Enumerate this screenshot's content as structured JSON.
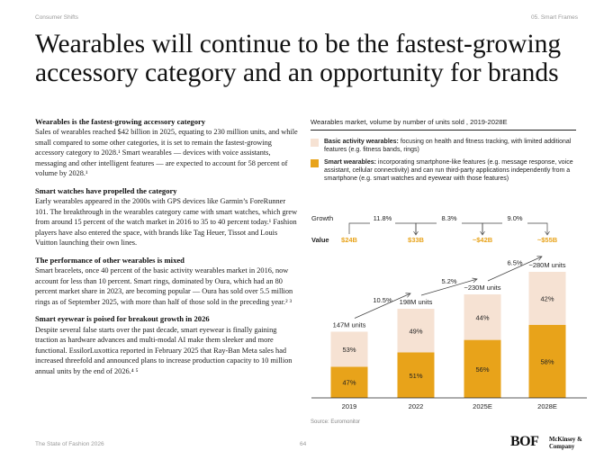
{
  "header": {
    "section": "Consumer Shifts",
    "chapter": "05. Smart Frames"
  },
  "title": "Wearables will continue to be the fastest-growing accessory category and an opportunity for brands",
  "sections": [
    {
      "heading": "Wearables is the fastest-growing accessory category",
      "body": "Sales of wearables reached $42 billion in 2025, equating to 230 million units, and while small compared to some other categories, it is set to remain the fastest-growing accessory category to 2028.¹ Smart wearables — devices with voice assistants, messaging and other intelligent features — are expected to account for 58 percent of volume by 2028.¹"
    },
    {
      "heading": "Smart watches have propelled the category",
      "body": "Early wearables appeared in the 2000s with GPS devices like Garmin’s ForeRunner 101. The breakthrough in the wearables category came with smart watches, which grew from around 15 percent of the watch market in 2016 to 35 to 40 percent today.¹ Fashion players have also entered the space, with brands like Tag Heuer, Tissot and Louis Vuitton launching their own lines."
    },
    {
      "heading": "The performance of other wearables is mixed",
      "body": "Smart bracelets, once 40 percent of the basic activity wearables market in 2016, now account for less than 10 percent. Smart rings, dominated by Oura, which had an 80 percent market share in 2023, are becoming popular — Oura has sold over 5.5 million rings as of September 2025, with more than half of those sold in the preceding year.² ³"
    },
    {
      "heading": "Smart eyewear is poised for breakout growth in 2026",
      "body": "Despite several false starts over the past decade, smart eyewear is finally gaining traction as hardware advances and multi-modal AI make them sleeker and more functional. EssilorLuxottica reported in February 2025 that Ray-Ban Meta sales had increased threefold and announced plans to increase production capacity to 10 million annual units by the end of 2026.⁴ ⁵"
    }
  ],
  "legend": [
    {
      "title": "Basic activity wearables:",
      "text": " focusing on health and fitness tracking, with limited additional features (e.g. fitness bands, rings)",
      "color": "#f6e2d3"
    },
    {
      "title": "Smart wearables:",
      "text": " incorporating smartphone-like features (e.g. message response, voice assistant, cellular connectivity) and can run third-party applications independently from a smartphone (e.g. smart watches and eyewear with those features)",
      "color": "#e8a31a"
    }
  ],
  "chart_data": {
    "type": "bar",
    "title": "Wearables market, volume by number of units sold , 2019-2028E",
    "categories": [
      "2019",
      "2022",
      "2025E",
      "2028E"
    ],
    "totals_units_millions": [
      147,
      198,
      230,
      280
    ],
    "total_labels": [
      "147M units",
      "198M units",
      "~230M units",
      "~280M units"
    ],
    "series": [
      {
        "name": "Smart wearables",
        "values": [
          47,
          51,
          56,
          58
        ],
        "labels": [
          "47%",
          "51%",
          "56%",
          "58%"
        ],
        "color": "#e8a31a"
      },
      {
        "name": "Basic activity wearables",
        "values": [
          53,
          49,
          44,
          42
        ],
        "labels": [
          "53%",
          "49%",
          "44%",
          "42%"
        ],
        "color": "#f6e2d3"
      }
    ],
    "growth_row_label": "Growth",
    "value_row_label": "Value",
    "market_value_growth": [
      "11.8%",
      "8.3%",
      "9.0%"
    ],
    "market_values": [
      "$24B",
      "$33B",
      "~$42B",
      "~$55B"
    ],
    "volume_growth": [
      "10.5%",
      "5.2%",
      "6.5%"
    ],
    "value_color": "#e8a31a",
    "ylim": [
      0,
      300
    ]
  },
  "source": "Source: Euromonitor",
  "footer": {
    "publication": "The State of Fashion 2026",
    "page": "64",
    "logo_bof": "BOF",
    "logo_mckinsey": "McKinsey & Company"
  }
}
